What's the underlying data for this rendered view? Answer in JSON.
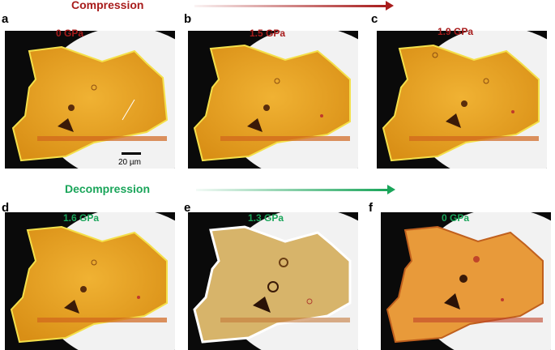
{
  "compression": {
    "label": "Compression",
    "color": "#a81c1c"
  },
  "decompression": {
    "label": "Decompression",
    "color": "#1aa55a"
  },
  "scale_bar": {
    "label": "20 µm"
  },
  "panels": [
    {
      "letter": "a",
      "pressure": "0  GPa",
      "pressure_color": "#a81c1c"
    },
    {
      "letter": "b",
      "pressure": "1.5 GPa",
      "pressure_color": "#a81c1c"
    },
    {
      "letter": "c",
      "pressure": "1.9 GPa",
      "pressure_color": "#a81c1c"
    },
    {
      "letter": "d",
      "pressure": "1.6 GPa",
      "pressure_color": "#1aa55a"
    },
    {
      "letter": "e",
      "pressure": "1.3 GPa",
      "pressure_color": "#1aa55a"
    },
    {
      "letter": "f",
      "pressure": "0 GPa",
      "pressure_color": "#1aa55a"
    }
  ]
}
